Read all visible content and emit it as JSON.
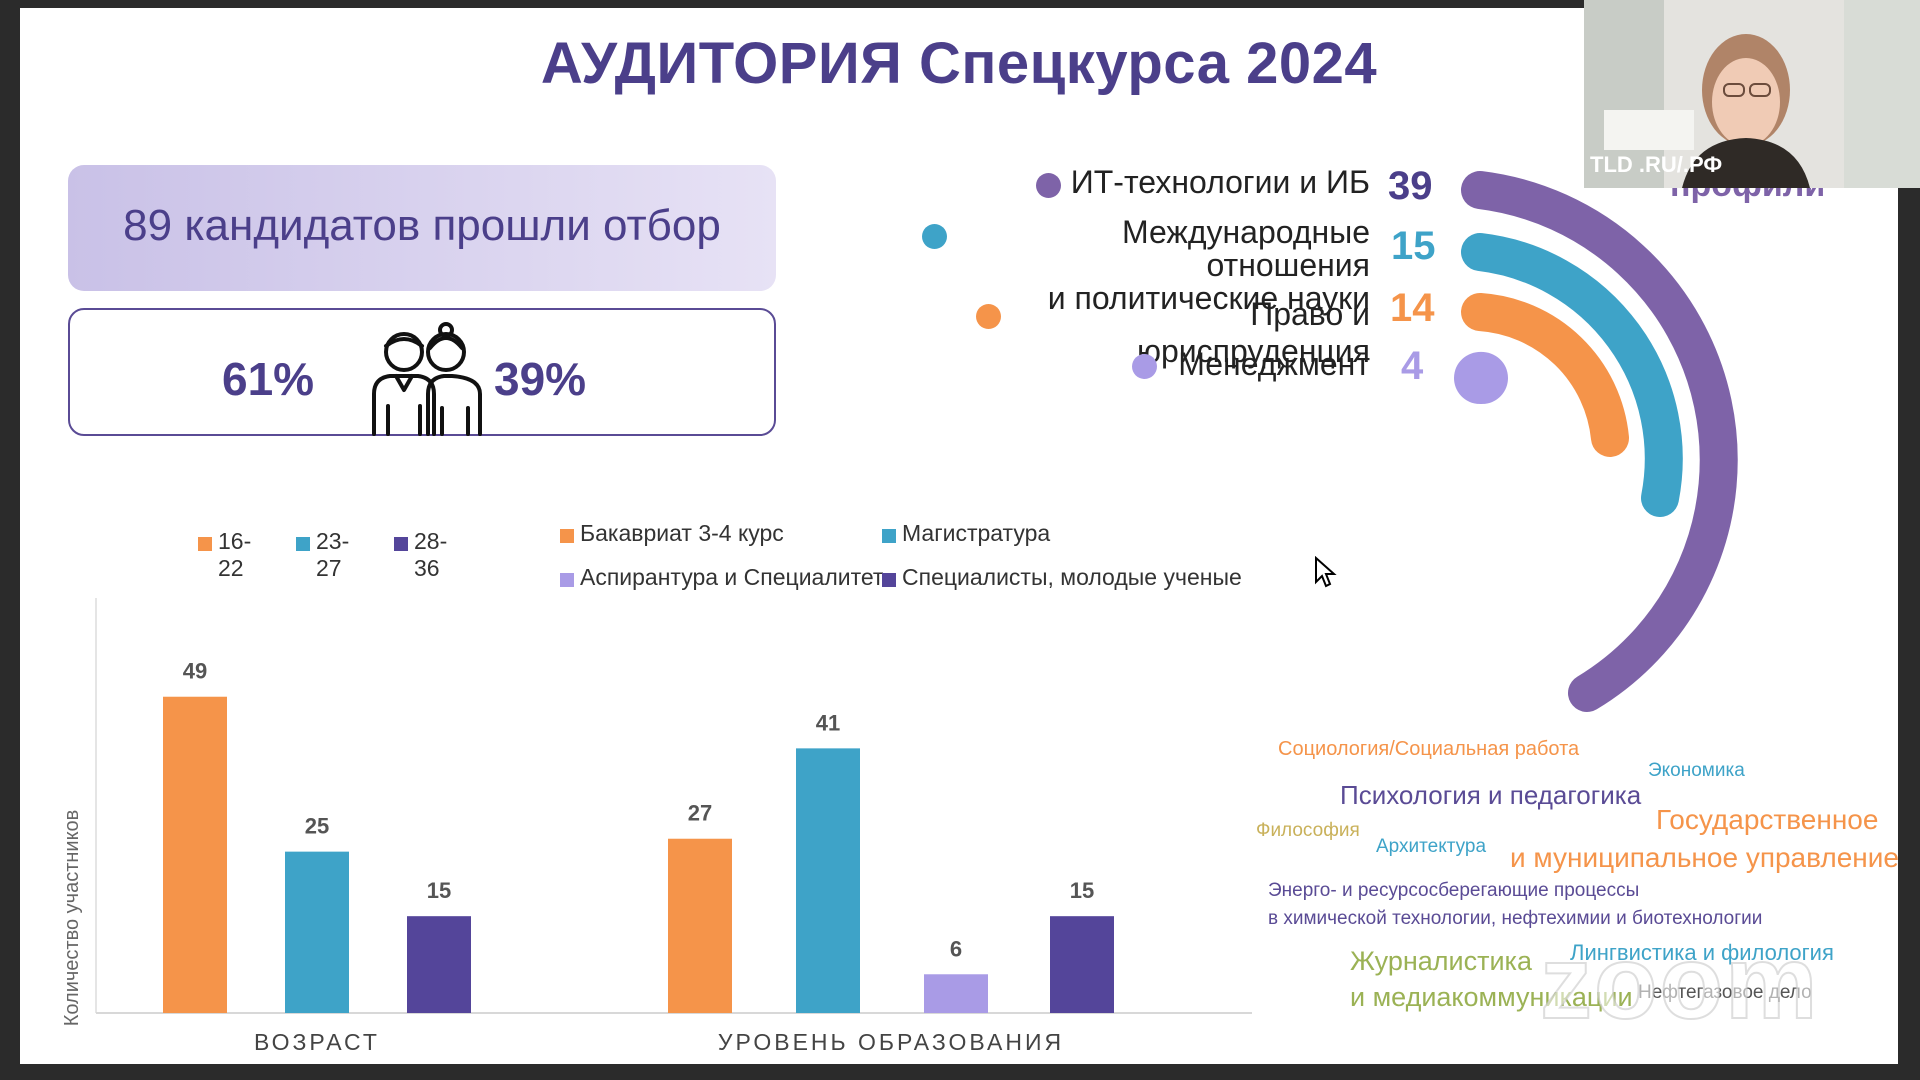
{
  "slide": {
    "title": "АУДИТОРИЯ Спецкурса 2024",
    "candidates_text": "89 кандидатов прошли отбор",
    "gender": {
      "male_pct": "61%",
      "female_pct": "39%",
      "icon": "people-icon"
    }
  },
  "profile": {
    "partial_title": "профили",
    "items": [
      {
        "label": "ИТ-технологии и ИБ",
        "value": "39",
        "color": "#7e63a8"
      },
      {
        "label": "Международные отношения\nи политические науки",
        "value": "15",
        "color": "#3ea3c8"
      },
      {
        "label": "Право и юриспруденция",
        "value": "14",
        "color": "#f5944a"
      },
      {
        "label": "Менеджмент",
        "value": "4",
        "color": "#a99be6"
      }
    ]
  },
  "legend_age": [
    {
      "label": "16-22",
      "color": "#f5944a"
    },
    {
      "label": "23-27",
      "color": "#3ea3c8"
    },
    {
      "label": "28-36",
      "color": "#54459a"
    }
  ],
  "legend_edu": [
    {
      "label": "Бакавриат 3-4 курс",
      "color": "#f5944a"
    },
    {
      "label": "Магистратура",
      "color": "#3ea3c8"
    },
    {
      "label": "Аспирантура и Специалитет",
      "color": "#a99be6"
    },
    {
      "label": "Специалисты, молодые ученые",
      "color": "#54459a"
    }
  ],
  "chart_data": {
    "type": "bar",
    "ylabel": "Количество участников",
    "groups": [
      {
        "name": "ВОЗРАСТ",
        "categories": [
          "16-22",
          "23-27",
          "28-36"
        ],
        "values": [
          49,
          25,
          15
        ],
        "colors": [
          "#f5944a",
          "#3ea3c8",
          "#54459a"
        ]
      },
      {
        "name": "УРОВЕНЬ ОБРАЗОВАНИЯ",
        "categories": [
          "Бакавриат 3-4 курс",
          "Магистратура",
          "Аспирантура и Специалитет",
          "Специалисты, молодые ученые"
        ],
        "values": [
          27,
          41,
          6,
          15
        ],
        "colors": [
          "#f5944a",
          "#3ea3c8",
          "#a99be6",
          "#54459a"
        ]
      }
    ]
  },
  "word_cloud": [
    {
      "text": "Социология/Социальная работа",
      "color": "#f5944a"
    },
    {
      "text": "Экономика",
      "color": "#3ea3c8"
    },
    {
      "text": "Психология и педагогика",
      "color": "#5a4b95"
    },
    {
      "text": "Государственное",
      "color": "#f5944a"
    },
    {
      "text": "и муниципальное управление",
      "color": "#f5944a"
    },
    {
      "text": "Философия",
      "color": "#c9b15a"
    },
    {
      "text": "Архитектура",
      "color": "#3ea3c8"
    },
    {
      "text": "Энерго- и ресурсосберегающие процессы",
      "color": "#5a4b95"
    },
    {
      "text": "в химической технологии, нефтехимии и биотехнологии",
      "color": "#5a4b95"
    },
    {
      "text": "Журналистика",
      "color": "#9bb255"
    },
    {
      "text": "и медиакоммуникации",
      "color": "#9bb255"
    },
    {
      "text": "Лингвистика и филология",
      "color": "#3ea3c8"
    },
    {
      "text": "Нефтегазовое дело",
      "color": "#555555"
    }
  ],
  "webcam": {
    "label": "TLD .RU/.РФ"
  },
  "zoom_watermark": "zoom"
}
